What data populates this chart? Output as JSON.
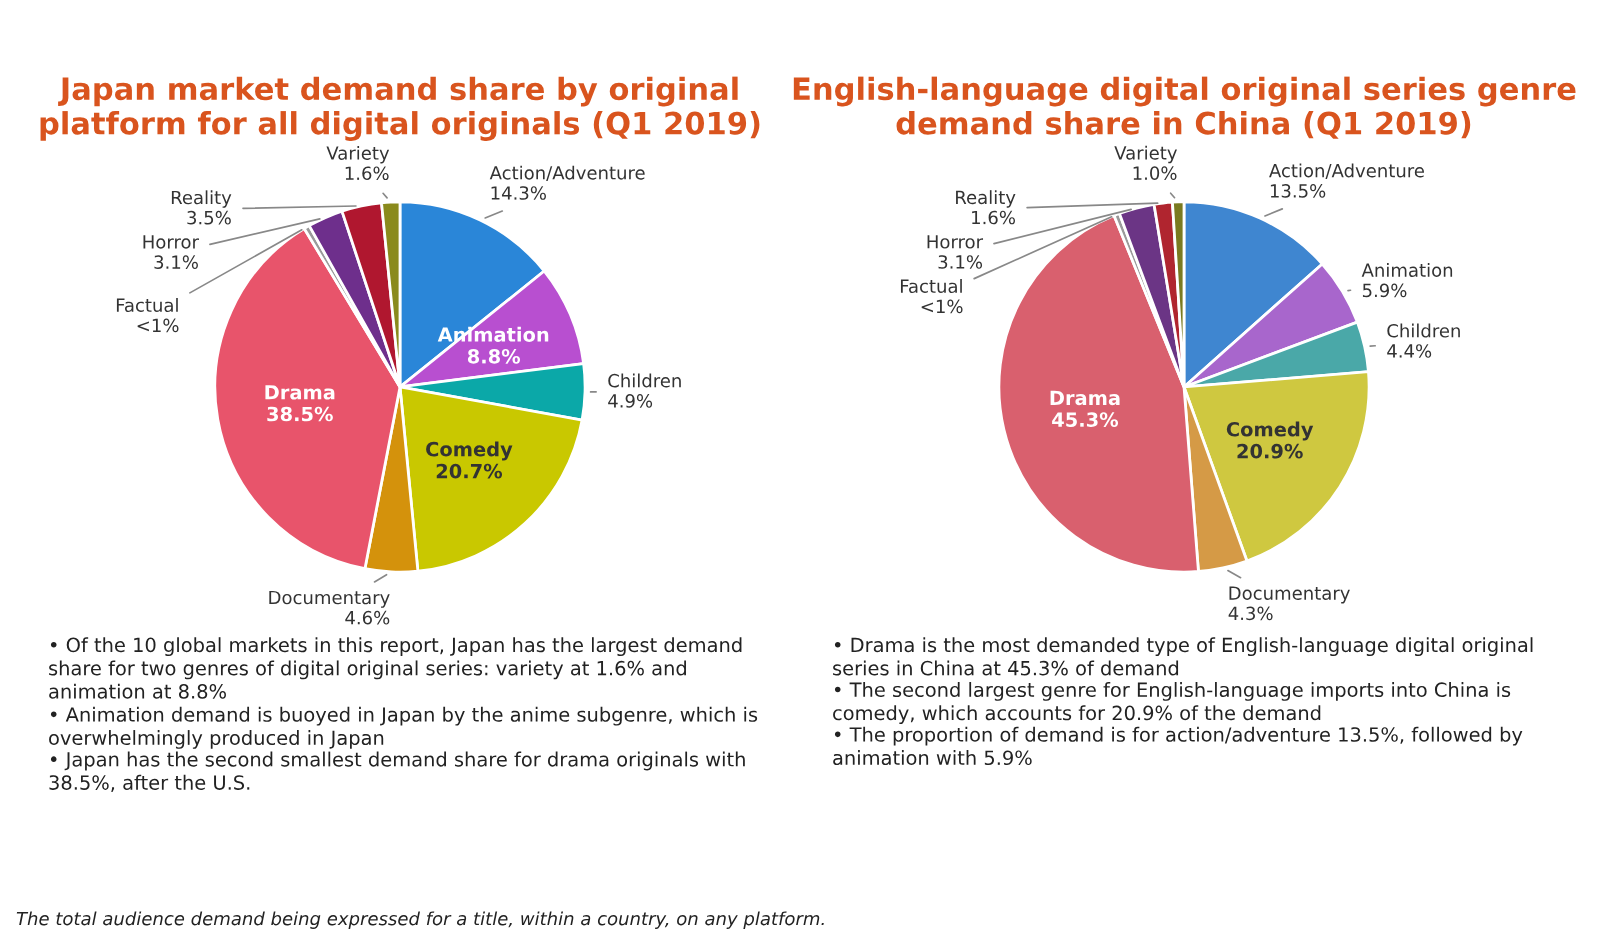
{
  "chart_data": [
    {
      "type": "pie",
      "title": "Japan market demand share by original platform for all digital originals (Q1 2019)",
      "categories": [
        "Action/Adventure",
        "Animation",
        "Children",
        "Comedy",
        "Documentary",
        "Drama",
        "Factual",
        "Horror",
        "Reality",
        "Variety"
      ],
      "values": [
        14.3,
        8.8,
        4.9,
        20.7,
        4.6,
        38.5,
        0.5,
        3.1,
        3.5,
        1.6
      ],
      "value_labels": [
        "14.3%",
        "8.8%",
        "4.9%",
        "20.7%",
        "4.6%",
        "38.5%",
        "<1%",
        "3.1%",
        "3.5%",
        "1.6%"
      ],
      "colors": [
        "#2a86d8",
        "#b84fd0",
        "#0ba8a8",
        "#c9c800",
        "#d4920c",
        "#e8546b",
        "#9a9a9a",
        "#6e2f8c",
        "#b0172f",
        "#8a8a1c"
      ],
      "annotations": [
        "• Of the 10 global markets in this report, Japan has the largest demand share for two genres of digital original series: variety at 1.6% and animation at 8.8%",
        "• Animation demand is buoyed in Japan by the anime subgenre, which is overwhelmingly produced in Japan",
        "• Japan has the second smallest demand share for drama originals with 38.5%, after the U.S.",
        "The total audience demand being expressed for a title, within a country, on any platform."
      ]
    },
    {
      "type": "pie",
      "title": "English-language digital original series genre demand share in China (Q1 2019)",
      "categories": [
        "Action/Adventure",
        "Animation",
        "Children",
        "Comedy",
        "Documentary",
        "Drama",
        "Factual",
        "Horror",
        "Reality",
        "Variety"
      ],
      "values": [
        13.5,
        5.9,
        4.4,
        20.9,
        4.3,
        45.3,
        0.5,
        3.1,
        1.6,
        1.0
      ],
      "value_labels": [
        "13.5%",
        "5.9%",
        "4.4%",
        "20.9%",
        "4.3%",
        "45.3%",
        "<1%",
        "3.1%",
        "1.6%",
        "1.0%"
      ],
      "colors": [
        "#3f86d0",
        "#a866cc",
        "#4aa8a8",
        "#cfc840",
        "#d59a46",
        "#d9606e",
        "#9a9a9a",
        "#6b3585",
        "#b0252f",
        "#7a7a20"
      ],
      "annotations": [
        "• Drama is the most demanded type of English-language digital original series in China at 45.3% of demand",
        "• The second largest genre for English-language imports into China is comedy, which accounts for 20.9% of the demand",
        "• The proportion of demand is for action/adventure 13.5%, followed by animation with 5.9%"
      ]
    }
  ]
}
